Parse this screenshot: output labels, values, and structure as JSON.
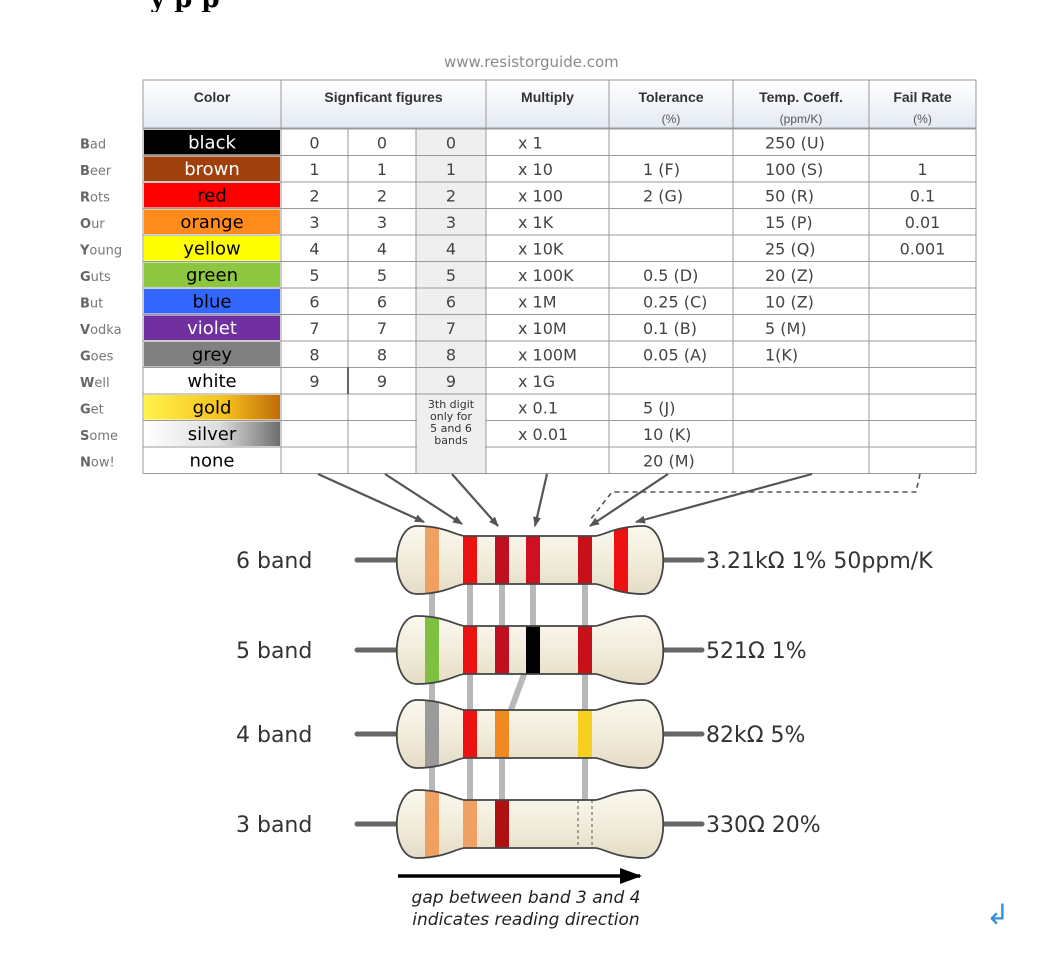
{
  "page": {
    "top_text": "y        p                                        p",
    "website": "www.resistorguide.com",
    "colors": {
      "text": "#333333",
      "header_bg": "#eef2f8",
      "grid": "#999999",
      "wire": "#666666",
      "body": "#f3efe2",
      "body_stroke": "#555555",
      "arrow": "#555555",
      "return": "#2f8fe0"
    }
  },
  "table": {
    "headers": [
      {
        "label": "Color",
        "sub": ""
      },
      {
        "label": "Signficant figures",
        "sub": ""
      },
      {
        "label": "Multiply",
        "sub": ""
      },
      {
        "label": "Tolerance",
        "sub": "(%)"
      },
      {
        "label": "Temp. Coeff.",
        "sub": "(ppm/K)"
      },
      {
        "label": "Fail Rate",
        "sub": "(%)"
      }
    ],
    "rows": [
      {
        "m_first": "B",
        "m_rest": "ad",
        "color": "black",
        "bg": "#000000",
        "fg": "#ffffff",
        "d1": "0",
        "d2": "0",
        "d3": "0",
        "mult": "x 1",
        "tol": "",
        "temp": "250 (U)",
        "fail": ""
      },
      {
        "m_first": "B",
        "m_rest": "eer",
        "color": "brown",
        "bg": "#a0410d",
        "fg": "#ffffff",
        "d1": "1",
        "d2": "1",
        "d3": "1",
        "mult": "x 10",
        "tol": "1 (F)",
        "temp": "100 (S)",
        "fail": "1"
      },
      {
        "m_first": "R",
        "m_rest": "ots",
        "color": "red",
        "bg": "#ff0000",
        "fg": "#000000",
        "d1": "2",
        "d2": "2",
        "d3": "2",
        "mult": "x 100",
        "tol": "2 (G)",
        "temp": "50 (R)",
        "fail": "0.1"
      },
      {
        "m_first": "O",
        "m_rest": "ur",
        "color": "orange",
        "bg": "#ff8c1a",
        "fg": "#000000",
        "d1": "3",
        "d2": "3",
        "d3": "3",
        "mult": "x 1K",
        "tol": "",
        "temp": "15 (P)",
        "fail": "0.01"
      },
      {
        "m_first": "Y",
        "m_rest": "oung",
        "color": "yellow",
        "bg": "#ffff00",
        "fg": "#000000",
        "d1": "4",
        "d2": "4",
        "d3": "4",
        "mult": "x 10K",
        "tol": "",
        "temp": "25 (Q)",
        "fail": "0.001"
      },
      {
        "m_first": "G",
        "m_rest": "uts",
        "color": "green",
        "bg": "#8dc63f",
        "fg": "#000000",
        "d1": "5",
        "d2": "5",
        "d3": "5",
        "mult": "x 100K",
        "tol": "0.5 (D)",
        "temp": "20 (Z)",
        "fail": ""
      },
      {
        "m_first": "B",
        "m_rest": "ut",
        "color": "blue",
        "bg": "#3366ff",
        "fg": "#000000",
        "d1": "6",
        "d2": "6",
        "d3": "6",
        "mult": "x 1M",
        "tol": "0.25 (C)",
        "temp": "10 (Z)",
        "fail": ""
      },
      {
        "m_first": "V",
        "m_rest": "odka",
        "color": "violet",
        "bg": "#7030a0",
        "fg": "#ffffff",
        "d1": "7",
        "d2": "7",
        "d3": "7",
        "mult": "x 10M",
        "tol": "0.1 (B)",
        "temp": "5 (M)",
        "fail": ""
      },
      {
        "m_first": "G",
        "m_rest": "oes",
        "color": "grey",
        "bg": "#808080",
        "fg": "#000000",
        "d1": "8",
        "d2": "8",
        "d3": "8",
        "mult": "x 100M",
        "tol": "0.05 (A)",
        "temp": "1(K)",
        "fail": ""
      },
      {
        "m_first": "W",
        "m_rest": "ell",
        "color": "white",
        "bg": "#ffffff",
        "fg": "#000000",
        "d1": "9",
        "d2": "9",
        "d3": "9",
        "mult": "x 1G",
        "tol": "",
        "temp": "",
        "fail": ""
      },
      {
        "m_first": "G",
        "m_rest": "et",
        "color": "gold",
        "bg": "#f0b020",
        "fg": "#000000",
        "d1": "",
        "d2": "",
        "d3": "",
        "mult": "x 0.1",
        "tol": "5 (J)",
        "temp": "",
        "fail": ""
      },
      {
        "m_first": "S",
        "m_rest": "ome",
        "color": "silver",
        "bg": "#d4d4d4",
        "fg": "#000000",
        "d1": "",
        "d2": "",
        "d3": "",
        "mult": "x 0.01",
        "tol": "10 (K)",
        "temp": "",
        "fail": ""
      },
      {
        "m_first": "N",
        "m_rest": "ow!",
        "color": "none",
        "bg": "#ffffff",
        "fg": "#000000",
        "d1": "",
        "d2": "",
        "d3": "",
        "mult": "",
        "tol": "20 (M)",
        "temp": "",
        "fail": ""
      }
    ],
    "third_digit_note": [
      "3th digit",
      "only for",
      "5 and 6",
      "bands"
    ]
  },
  "resistors": [
    {
      "label": "6 band",
      "value": "3.21kΩ 1% 50ppm/K",
      "bands": [
        "#f0a060",
        "#ee1111",
        "#c01020",
        "#d01020",
        "#c81018",
        "#ee1111"
      ]
    },
    {
      "label": "5 band",
      "value": "521Ω 1%",
      "bands": [
        "#80c040",
        "#ee1111",
        "#c01020",
        "#000000",
        "#c81018"
      ]
    },
    {
      "label": "4 band",
      "value": "82kΩ 5%",
      "bands": [
        "#9a9a9a",
        "#ee1111",
        "#f08a20",
        "#f5d020"
      ]
    },
    {
      "label": "3 band",
      "value": "330Ω 20%",
      "bands": [
        "#f0a060",
        "#f0a060",
        "#b01010"
      ]
    }
  ],
  "caption": {
    "line1": "gap between band 3 and 4",
    "line2": "indicates reading direction"
  },
  "return_icon": "return-arrow-icon"
}
